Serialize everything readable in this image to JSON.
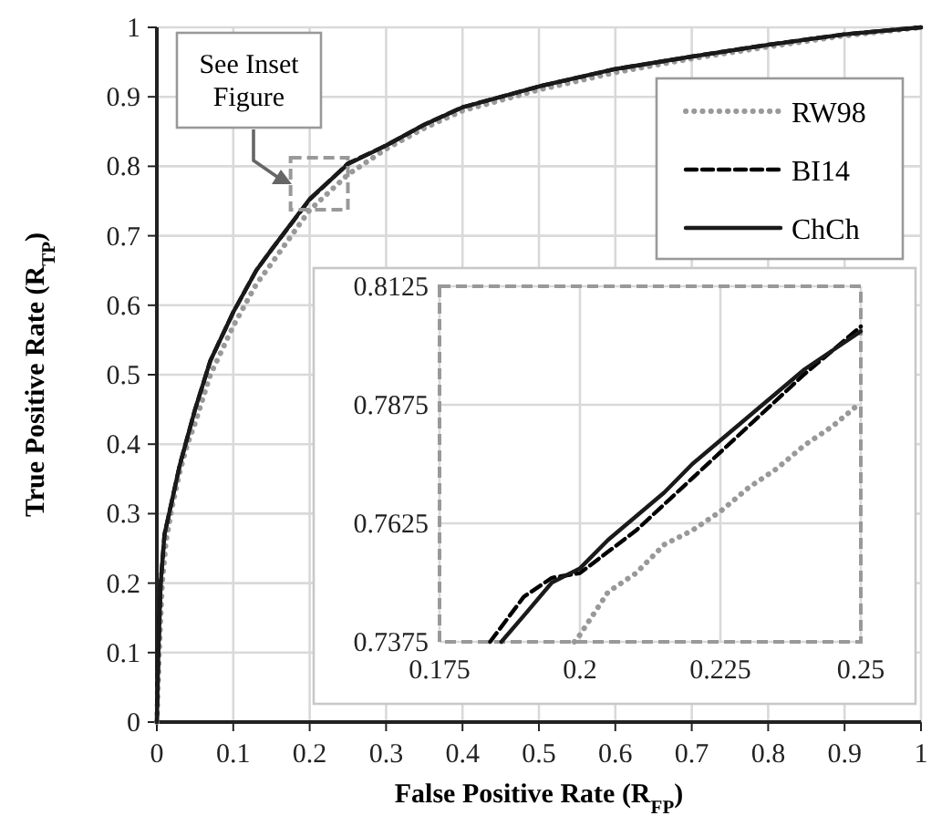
{
  "chart_data": [
    {
      "type": "line",
      "xlabel": "False Positive Rate (R$_{FP}$)",
      "ylabel": "True Positive Rate (R$_{TP}$)",
      "xlim": [
        0,
        1
      ],
      "ylim": [
        0,
        1
      ],
      "xticks": [
        0,
        0.1,
        0.2,
        0.3,
        0.4,
        0.5,
        0.6,
        0.7,
        0.8,
        0.9,
        1
      ],
      "yticks": [
        0,
        0.1,
        0.2,
        0.3,
        0.4,
        0.5,
        0.6,
        0.7,
        0.8,
        0.9,
        1
      ],
      "grid": true,
      "legend": "top right",
      "annotations": [
        "See Inset Figure"
      ],
      "series": [
        {
          "name": "RW98",
          "color": "#999999",
          "line_style": "dotted",
          "x": [
            0,
            0.003,
            0.007,
            0.012,
            0.02,
            0.03,
            0.04,
            0.05,
            0.07,
            0.1,
            0.13,
            0.15,
            0.2,
            0.25,
            0.3,
            0.35,
            0.4,
            0.5,
            0.6,
            0.7,
            0.8,
            0.9,
            1
          ],
          "values": [
            0,
            0.1,
            0.2,
            0.26,
            0.31,
            0.36,
            0.4,
            0.43,
            0.5,
            0.57,
            0.63,
            0.66,
            0.737,
            0.788,
            0.825,
            0.855,
            0.88,
            0.91,
            0.935,
            0.955,
            0.972,
            0.988,
            1
          ]
        },
        {
          "name": "BI14",
          "color": "#000000",
          "line_style": "dashed",
          "x": [
            0,
            0.002,
            0.005,
            0.01,
            0.02,
            0.03,
            0.04,
            0.05,
            0.07,
            0.1,
            0.13,
            0.15,
            0.2,
            0.25,
            0.3,
            0.35,
            0.4,
            0.5,
            0.6,
            0.7,
            0.8,
            0.9,
            1
          ],
          "values": [
            0,
            0.1,
            0.2,
            0.27,
            0.32,
            0.37,
            0.41,
            0.45,
            0.52,
            0.59,
            0.65,
            0.68,
            0.752,
            0.804,
            0.83,
            0.86,
            0.885,
            0.915,
            0.94,
            0.958,
            0.975,
            0.99,
            1
          ]
        },
        {
          "name": "ChCh",
          "color": "#1a1a1a",
          "line_style": "solid",
          "x": [
            0,
            0.002,
            0.005,
            0.01,
            0.02,
            0.03,
            0.04,
            0.05,
            0.07,
            0.1,
            0.13,
            0.15,
            0.2,
            0.25,
            0.3,
            0.35,
            0.4,
            0.5,
            0.6,
            0.7,
            0.8,
            0.9,
            1
          ],
          "values": [
            0,
            0.1,
            0.2,
            0.27,
            0.32,
            0.37,
            0.41,
            0.45,
            0.52,
            0.59,
            0.65,
            0.68,
            0.753,
            0.803,
            0.83,
            0.86,
            0.885,
            0.915,
            0.94,
            0.958,
            0.975,
            0.99,
            1
          ]
        }
      ]
    },
    {
      "type": "line",
      "xlim": [
        0.175,
        0.25
      ],
      "ylim": [
        0.7375,
        0.8125
      ],
      "xticks": [
        0.175,
        0.2,
        0.225,
        0.25
      ],
      "yticks": [
        0.7375,
        0.7625,
        0.7875,
        0.8125
      ],
      "grid": true,
      "series": [
        {
          "color": "#999999",
          "line_style": "dotted",
          "x": [
            0.199,
            0.2,
            0.205,
            0.21,
            0.215,
            0.22,
            0.225,
            0.23,
            0.235,
            0.24,
            0.245,
            0.25
          ],
          "values": [
            0.7375,
            0.739,
            0.748,
            0.752,
            0.758,
            0.761,
            0.765,
            0.77,
            0.774,
            0.779,
            0.783,
            0.788
          ]
        },
        {
          "color": "#000000",
          "line_style": "dashed",
          "x": [
            0.184,
            0.19,
            0.195,
            0.2,
            0.21,
            0.22,
            0.23,
            0.24,
            0.25
          ],
          "values": [
            0.7375,
            0.747,
            0.751,
            0.752,
            0.761,
            0.772,
            0.783,
            0.794,
            0.804
          ]
        },
        {
          "color": "#1a1a1a",
          "line_style": "solid",
          "x": [
            0.186,
            0.19,
            0.195,
            0.2,
            0.205,
            0.21,
            0.215,
            0.22,
            0.225,
            0.23,
            0.235,
            0.24,
            0.245,
            0.25
          ],
          "values": [
            0.7375,
            0.743,
            0.75,
            0.753,
            0.759,
            0.764,
            0.769,
            0.775,
            0.78,
            0.785,
            0.79,
            0.795,
            0.799,
            0.803
          ]
        }
      ]
    }
  ]
}
